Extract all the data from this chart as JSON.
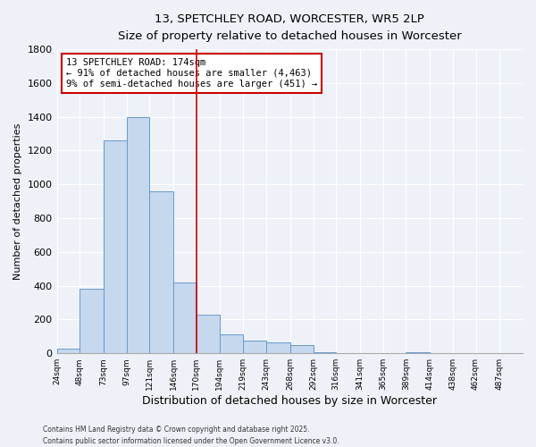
{
  "title": "13, SPETCHLEY ROAD, WORCESTER, WR5 2LP",
  "subtitle": "Size of property relative to detached houses in Worcester",
  "xlabel": "Distribution of detached houses by size in Worcester",
  "ylabel": "Number of detached properties",
  "footnote1": "Contains HM Land Registry data © Crown copyright and database right 2025.",
  "footnote2": "Contains public sector information licensed under the Open Government Licence v3.0.",
  "annotation_line1": "13 SPETCHLEY ROAD: 174sqm",
  "annotation_line2": "← 91% of detached houses are smaller (4,463)",
  "annotation_line3": "9% of semi-detached houses are larger (451) →",
  "bar_edges": [
    24,
    48,
    73,
    97,
    121,
    146,
    170,
    194,
    219,
    243,
    268,
    292,
    316,
    341,
    365,
    389,
    414,
    438,
    462,
    487,
    511
  ],
  "bar_heights": [
    25,
    380,
    1260,
    1400,
    960,
    420,
    230,
    110,
    75,
    65,
    50,
    5,
    0,
    0,
    0,
    5,
    0,
    0,
    0,
    0
  ],
  "bar_color": "#c5d8ee",
  "bar_edge_color": "#6699cc",
  "vline_color": "#cc0000",
  "vline_x": 170,
  "annotation_box_edge": "#cc0000",
  "ylim": [
    0,
    1800
  ],
  "yticks": [
    0,
    200,
    400,
    600,
    800,
    1000,
    1200,
    1400,
    1600,
    1800
  ],
  "bg_color": "#eef2f8",
  "grid_color": "#ffffff",
  "figwidth": 6.0,
  "figheight": 5.0,
  "dpi": 100
}
